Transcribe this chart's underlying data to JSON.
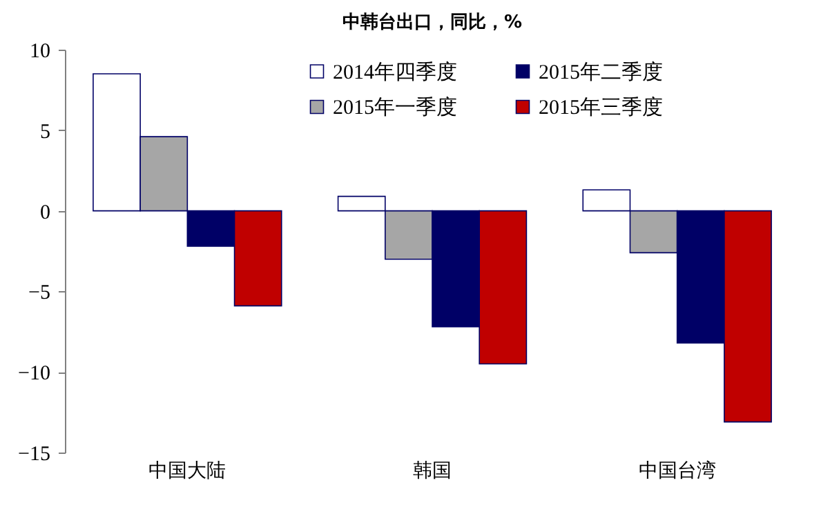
{
  "chart_data": {
    "type": "bar",
    "title": "中韩台出口，同比，%",
    "categories": [
      "中国大陆",
      "韩国",
      "中国台湾"
    ],
    "series": [
      {
        "name": "2014年四季度",
        "color": "#ffffff",
        "values": [
          8.5,
          0.9,
          1.3
        ]
      },
      {
        "name": "2015年一季度",
        "color": "#a6a6a6",
        "values": [
          4.6,
          -3.0,
          -2.6
        ]
      },
      {
        "name": "2015年二季度",
        "color": "#000066",
        "values": [
          -2.2,
          -7.2,
          -8.2
        ]
      },
      {
        "name": "2015年三季度",
        "color": "#c00000",
        "values": [
          -5.9,
          -9.5,
          -13.1
        ]
      }
    ],
    "ylim": [
      -15,
      10
    ],
    "yticks": [
      -15,
      -10,
      -5,
      0,
      5,
      10
    ],
    "grid": false,
    "legend": "top right"
  }
}
